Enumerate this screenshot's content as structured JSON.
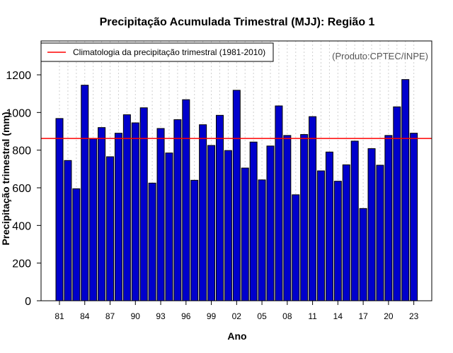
{
  "chart_data": {
    "type": "bar",
    "title": "Precipitação Acumulada Trimestral (MJJ): Região 1",
    "xlabel": "Ano",
    "ylabel": "Precipitação trimestral (mm)",
    "ylim": [
      0,
      1380
    ],
    "yticks": [
      0,
      200,
      400,
      600,
      800,
      1000,
      1200
    ],
    "categories": [
      "1981",
      "1982",
      "1983",
      "1984",
      "1985",
      "1986",
      "1987",
      "1988",
      "1989",
      "1990",
      "1991",
      "1992",
      "1993",
      "1994",
      "1995",
      "1996",
      "1997",
      "1998",
      "1999",
      "2000",
      "2001",
      "2002",
      "2003",
      "2004",
      "2005",
      "2006",
      "2007",
      "2008",
      "2009",
      "2010",
      "2011",
      "2012",
      "2013",
      "2014",
      "2015",
      "2016",
      "2017",
      "2018",
      "2019",
      "2020",
      "2021",
      "2022",
      "2023"
    ],
    "tick_labels": [
      "81",
      "84",
      "87",
      "90",
      "93",
      "96",
      "99",
      "02",
      "05",
      "08",
      "11",
      "14",
      "17",
      "20",
      "23"
    ],
    "tick_indices": [
      0,
      3,
      6,
      9,
      12,
      15,
      18,
      21,
      24,
      27,
      30,
      33,
      36,
      39,
      42
    ],
    "values": [
      968,
      745,
      595,
      1145,
      860,
      920,
      765,
      890,
      988,
      945,
      1025,
      625,
      915,
      785,
      962,
      1068,
      640,
      935,
      825,
      985,
      798,
      1118,
      705,
      843,
      642,
      822,
      1035,
      878,
      563,
      883,
      978,
      690,
      790,
      635,
      722,
      848,
      490,
      808,
      720,
      878,
      1030,
      1175,
      890
    ],
    "climatology": {
      "label": "Climatologia da precipitação trimestral (1981-2010)",
      "value": 862,
      "color": "#ff0000"
    },
    "bar_color": "#0000cc",
    "grid": true,
    "legend_position": "top-left",
    "credit": "(Produto:CPTEC/INPE)"
  }
}
